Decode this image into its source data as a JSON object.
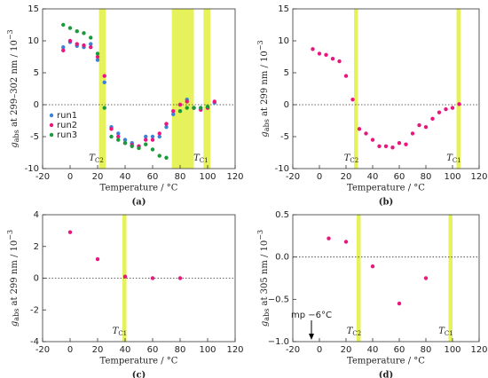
{
  "chart_data": [
    {
      "type": "scatter",
      "panel_label": "(a)",
      "xlabel": "Temperature / °C",
      "ylabel": {
        "main": "g",
        "sub": "abs",
        "rest": " at 299–302 nm / 10",
        "sup": "−3"
      },
      "xlim": [
        -20,
        120
      ],
      "xticks": [
        -20,
        0,
        20,
        40,
        60,
        80,
        100,
        120
      ],
      "ylim": [
        -10,
        15
      ],
      "yticks": [
        -10,
        -5,
        0,
        5,
        10,
        15
      ],
      "hline": 0,
      "legend": "lower left",
      "band_color": "#e6f25c",
      "bands": [
        {
          "from": 21,
          "to": 26,
          "label": {
            "main": "T",
            "sub": "C2"
          }
        },
        {
          "from": 74,
          "to": 90
        },
        {
          "from": 97,
          "to": 102,
          "label": {
            "main": "T",
            "sub": "C1"
          }
        }
      ],
      "series": [
        {
          "name": "run1",
          "color": "#3b82d6",
          "x": [
            -5,
            0,
            5,
            10,
            15,
            20,
            25,
            30,
            35,
            40,
            45,
            50,
            55,
            60,
            65,
            70,
            75,
            80,
            85,
            90,
            95,
            100,
            105
          ],
          "values": [
            9,
            9.8,
            9.2,
            9,
            9.5,
            7,
            3.5,
            -3.5,
            -4.5,
            -5.5,
            -6,
            -6.5,
            -5,
            -5,
            -5,
            -3.5,
            -1.5,
            0,
            0.8,
            -0.5,
            -0.5,
            -0.5,
            0.3
          ]
        },
        {
          "name": "run2",
          "color": "#e8177d",
          "x": [
            -5,
            0,
            5,
            10,
            15,
            20,
            25,
            30,
            35,
            40,
            45,
            50,
            55,
            60,
            65,
            70,
            75,
            80,
            85,
            90,
            95,
            100,
            105
          ],
          "values": [
            8.5,
            10,
            9.5,
            9.3,
            9,
            7.5,
            4.5,
            -3.8,
            -5,
            -6,
            -6.3,
            -6.5,
            -5.5,
            -5.5,
            -4.5,
            -3,
            -1,
            0,
            0.5,
            -0.5,
            -0.8,
            -0.5,
            0.5
          ]
        },
        {
          "name": "run3",
          "color": "#1a9a3a",
          "x": [
            -5,
            0,
            5,
            10,
            15,
            20,
            25,
            30,
            35,
            40,
            45,
            50,
            55,
            60,
            65,
            70,
            80,
            85,
            90,
            95,
            100
          ],
          "values": [
            12.5,
            12,
            11.5,
            11.2,
            10.5,
            8,
            -0.5,
            -5,
            -5.5,
            -6,
            -6.5,
            -6.8,
            -6.2,
            -7,
            -8,
            -8.3,
            -1,
            -0.5,
            -0.5,
            -0.5,
            -0.3
          ]
        }
      ]
    },
    {
      "type": "scatter",
      "panel_label": "(b)",
      "xlabel": "Temperature / °C",
      "ylabel": {
        "main": "g",
        "sub": "abs",
        "rest": " at 299 nm / 10",
        "sup": "−3"
      },
      "xlim": [
        -20,
        120
      ],
      "xticks": [
        -20,
        0,
        20,
        40,
        60,
        80,
        100,
        120
      ],
      "ylim": [
        -10,
        15
      ],
      "yticks": [
        -10,
        -5,
        0,
        5,
        10,
        15
      ],
      "hline": 0,
      "band_color": "#e6f25c",
      "bands": [
        {
          "from": 26,
          "to": 29,
          "label": {
            "main": "T",
            "sub": "C2"
          }
        },
        {
          "from": 103,
          "to": 106,
          "label": {
            "main": "T",
            "sub": "C1"
          }
        }
      ],
      "series": [
        {
          "color": "#e8177d",
          "x": [
            -5,
            0,
            5,
            10,
            15,
            20,
            25,
            30,
            35,
            40,
            45,
            50,
            55,
            60,
            65,
            70,
            75,
            80,
            85,
            90,
            95,
            100,
            105
          ],
          "values": [
            8.7,
            8,
            7.8,
            7.2,
            6.8,
            4.5,
            0.8,
            -3.8,
            -4.5,
            -5.5,
            -6.5,
            -6.5,
            -6.7,
            -6,
            -6.2,
            -4.5,
            -3.2,
            -3.5,
            -2.2,
            -1.2,
            -0.7,
            -0.5,
            0.1
          ]
        }
      ]
    },
    {
      "type": "scatter",
      "panel_label": "(c)",
      "xlabel": "Temperature / °C",
      "ylabel": {
        "main": "g",
        "sub": "abs",
        "rest": " at 299 nm / 10",
        "sup": "−3"
      },
      "xlim": [
        -20,
        120
      ],
      "xticks": [
        -20,
        0,
        20,
        40,
        60,
        80,
        100,
        120
      ],
      "ylim": [
        -4,
        4
      ],
      "yticks": [
        -4,
        -2,
        0,
        2,
        4
      ],
      "hline": 0,
      "band_color": "#e6f25c",
      "bands": [
        {
          "from": 38,
          "to": 41,
          "label": {
            "main": "T",
            "sub": "C1"
          }
        }
      ],
      "series": [
        {
          "color": "#e8177d",
          "x": [
            0,
            20,
            40,
            60,
            80
          ],
          "values": [
            2.9,
            1.2,
            0.1,
            0,
            0
          ]
        }
      ]
    },
    {
      "type": "scatter",
      "panel_label": "(d)",
      "xlabel": "Temperature / °C",
      "ylabel": {
        "main": "g",
        "sub": "abs",
        "rest": " at 305 nm / 10",
        "sup": "−3"
      },
      "xlim": [
        -20,
        120
      ],
      "xticks": [
        -20,
        0,
        20,
        40,
        60,
        80,
        100,
        120
      ],
      "ylim": [
        -1,
        0.5
      ],
      "yticks": [
        {
          "value": -1,
          "label": "−1.0"
        },
        {
          "value": -0.5,
          "label": "−0.5"
        },
        {
          "value": 0,
          "label": "0.0"
        },
        {
          "value": 0.5,
          "label": "0.5"
        }
      ],
      "hline": 0,
      "band_color": "#e6f25c",
      "bands": [
        {
          "from": 28,
          "to": 31,
          "label": {
            "main": "T",
            "sub": "C2"
          }
        },
        {
          "from": 97,
          "to": 100,
          "label": {
            "main": "T",
            "sub": "C1"
          }
        }
      ],
      "annotation": {
        "text": "mp −6°C",
        "x": -6
      },
      "series": [
        {
          "color": "#e8177d",
          "x": [
            7,
            20,
            40,
            60,
            80
          ],
          "values": [
            0.22,
            0.18,
            -0.11,
            -0.55,
            -0.25
          ]
        }
      ]
    }
  ]
}
